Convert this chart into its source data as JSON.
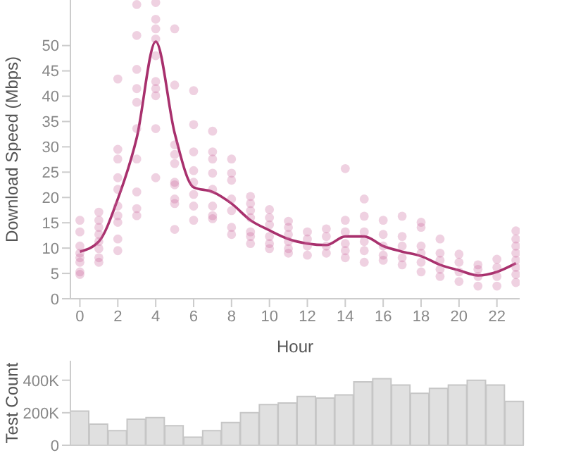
{
  "chart_data": [
    {
      "type": "scatter",
      "xlabel": "Hour",
      "ylabel": "Download Speed (Mbps)",
      "xlim": [
        -0.5,
        23.2
      ],
      "xticks": [
        0,
        2,
        4,
        6,
        8,
        10,
        12,
        14,
        16,
        18,
        20,
        22
      ],
      "ylim": [
        0,
        59
      ],
      "yticks": [
        0,
        5,
        10,
        15,
        20,
        25,
        30,
        35,
        40,
        45,
        50
      ],
      "grid": false,
      "legend": false,
      "series": [
        {
          "type": "scatter",
          "marker": "circle",
          "color": "#c9679c",
          "x": [
            0,
            0,
            0,
            0,
            0,
            0,
            0,
            0,
            1,
            1,
            1,
            1,
            1,
            1,
            1,
            1,
            2,
            2,
            2,
            2,
            2,
            2,
            2,
            2,
            2,
            2,
            3,
            3,
            3,
            3,
            3,
            3,
            3,
            3,
            3,
            3,
            4,
            4,
            4,
            4,
            4,
            4,
            4,
            4,
            4,
            4,
            5,
            5,
            5,
            5,
            5,
            5,
            5,
            5,
            5,
            5,
            6,
            6,
            6,
            6,
            6,
            6,
            6,
            6,
            7,
            7,
            7,
            7,
            7,
            7,
            7,
            7,
            8,
            8,
            8,
            8,
            8,
            8,
            8,
            9,
            9,
            9,
            9,
            9,
            9,
            9,
            10,
            10,
            10,
            10,
            10,
            10,
            11,
            11,
            11,
            11,
            11,
            11,
            12,
            12,
            12,
            12,
            13,
            13,
            13,
            13,
            14,
            14,
            14,
            14,
            14,
            14,
            15,
            15,
            15,
            15,
            15,
            15,
            16,
            16,
            16,
            16,
            16,
            17,
            17,
            17,
            17,
            17,
            18,
            18,
            18,
            18,
            18,
            18,
            19,
            19,
            19,
            19,
            19,
            20,
            20,
            20,
            20,
            21,
            21,
            21,
            21,
            22,
            22,
            22,
            22,
            23,
            23,
            23,
            23,
            23,
            23,
            23,
            23
          ],
          "values": [
            15.5,
            13.2,
            10.4,
            9.0,
            8.1,
            7.2,
            5.3,
            4.8,
            17.1,
            15.5,
            14.1,
            12.7,
            11.3,
            9.9,
            8.1,
            7.2,
            43.4,
            29.5,
            27.6,
            23.9,
            21.6,
            18.3,
            16.4,
            15.1,
            11.8,
            9.5,
            58.1,
            52.0,
            45.3,
            41.5,
            38.8,
            33.6,
            27.6,
            21.1,
            17.8,
            16.4,
            58.5,
            55.2,
            53.3,
            51.3,
            48.0,
            42.9,
            41.5,
            40.1,
            33.6,
            23.9,
            53.3,
            42.2,
            30.4,
            28.5,
            26.7,
            23.0,
            22.5,
            19.7,
            18.8,
            13.7,
            41.1,
            34.4,
            29.0,
            25.3,
            23.0,
            20.6,
            18.3,
            15.5,
            33.1,
            29.0,
            27.6,
            24.8,
            21.6,
            18.3,
            16.4,
            15.8,
            27.6,
            24.8,
            23.4,
            19.7,
            17.4,
            14.1,
            12.7,
            20.2,
            18.8,
            17.4,
            16.0,
            13.2,
            12.3,
            10.9,
            17.6,
            16.0,
            14.6,
            12.3,
            10.9,
            9.9,
            15.3,
            14.1,
            12.7,
            11.3,
            9.9,
            9.0,
            13.2,
            11.8,
            10.4,
            8.6,
            13.8,
            12.3,
            10.4,
            9.0,
            25.7,
            15.5,
            13.2,
            10.9,
            9.5,
            8.1,
            19.7,
            16.3,
            13.2,
            11.3,
            9.5,
            7.2,
            15.5,
            12.7,
            10.4,
            8.6,
            7.6,
            16.3,
            12.3,
            10.4,
            8.1,
            6.7,
            15.1,
            14.1,
            10.4,
            9.0,
            7.2,
            5.3,
            11.8,
            9.0,
            7.6,
            5.8,
            4.4,
            8.8,
            7.2,
            5.3,
            3.4,
            6.7,
            5.8,
            4.4,
            2.5,
            7.8,
            6.2,
            4.4,
            2.5,
            13.4,
            11.8,
            10.4,
            9.0,
            7.6,
            6.2,
            4.8,
            3.2
          ]
        },
        {
          "type": "line",
          "marker": "none",
          "color": "#a8306d",
          "x": [
            0,
            1,
            2,
            3,
            4,
            5,
            6,
            7,
            8,
            9,
            10,
            11,
            12,
            13,
            14,
            15,
            16,
            17,
            18,
            19,
            20,
            21,
            22,
            23
          ],
          "values": [
            9.3,
            11.3,
            19.7,
            31.8,
            50.8,
            32.7,
            22.0,
            21.1,
            18.8,
            15.5,
            13.5,
            11.8,
            10.9,
            10.6,
            12.3,
            12.3,
            10.4,
            9.3,
            8.4,
            6.7,
            5.6,
            4.6,
            5.3,
            7.0
          ]
        }
      ]
    },
    {
      "type": "bar",
      "ylabel": "Test Count",
      "ylim": [
        0,
        520000
      ],
      "yticks": [
        0,
        {
          "value": 200000,
          "label": "200K"
        },
        {
          "value": 400000,
          "label": "400K"
        }
      ],
      "tick_labels": "y",
      "grid": false,
      "legend": false,
      "color": "#e0e0e0",
      "categories": [
        null,
        null,
        null,
        null,
        null,
        null,
        null,
        null,
        null,
        null,
        null,
        null,
        null,
        null,
        null,
        null,
        null,
        null,
        null,
        null,
        null,
        null,
        null,
        null
      ],
      "values": [
        210000,
        130000,
        90000,
        160000,
        170000,
        120000,
        50000,
        90000,
        140000,
        200000,
        250000,
        260000,
        300000,
        290000,
        310000,
        390000,
        410000,
        370000,
        320000,
        350000,
        370000,
        400000,
        370000,
        270000
      ]
    }
  ]
}
